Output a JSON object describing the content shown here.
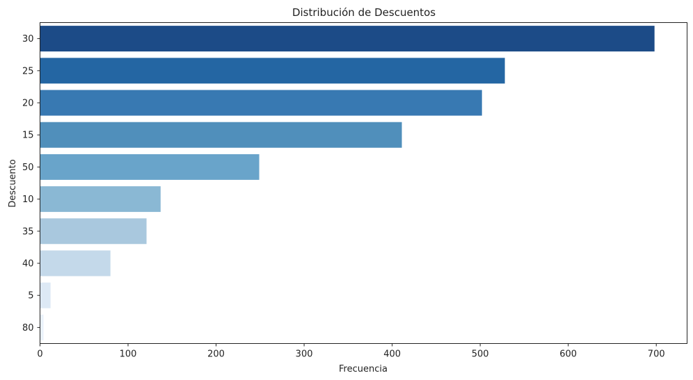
{
  "chart_data": {
    "type": "bar",
    "orientation": "horizontal",
    "title": "Distribución de Descuentos",
    "xlabel": "Frecuencia",
    "ylabel": "Descuento",
    "categories": [
      "30",
      "25",
      "20",
      "15",
      "50",
      "10",
      "35",
      "40",
      "5",
      "80"
    ],
    "values": [
      698,
      528,
      502,
      411,
      249,
      137,
      121,
      80,
      12,
      4
    ],
    "colors": [
      "#1c4b87",
      "#2466a3",
      "#3879b2",
      "#508fbb",
      "#69a4ca",
      "#8ab8d4",
      "#a9c8de",
      "#c4d9ea",
      "#dde9f5",
      "#eaf2fb"
    ],
    "xlim": [
      0,
      735
    ],
    "xticks": [
      "0",
      "100",
      "200",
      "300",
      "400",
      "500",
      "600",
      "700"
    ],
    "xtick_values": [
      0,
      100,
      200,
      300,
      400,
      500,
      600,
      700
    ],
    "grid": false,
    "legend": "none"
  }
}
